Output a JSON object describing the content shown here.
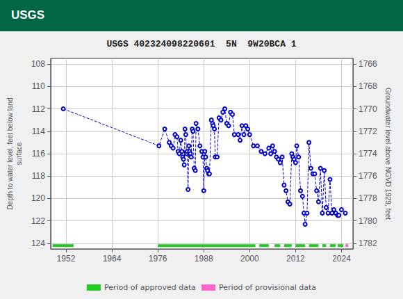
{
  "chart_data": {
    "type": "line",
    "title": "USGS 402324098220601  5N  9W20BCA 1",
    "ylabel": "Depth to water level, feet below land\nsurface",
    "y2label": "Groundwater level above NGVD 1929, feet",
    "annotations": [
      {
        "text": "USGS"
      }
    ],
    "xlim": [
      1948,
      2027
    ],
    "xticks": [
      1952,
      1964,
      1976,
      1988,
      2000,
      2012,
      2024
    ],
    "ylim": [
      124.5,
      107.5
    ],
    "yticks": [
      108,
      110,
      112,
      114,
      116,
      118,
      120,
      122,
      124
    ],
    "y2lim": [
      1782.5,
      1765.5
    ],
    "y2ticks": [
      1782,
      1780,
      1778,
      1776,
      1774,
      1772,
      1770,
      1768,
      1766
    ],
    "grid": true,
    "legend": "bottom",
    "series": [
      {
        "type": "line",
        "color": "#0000cc",
        "line_style": "dashed",
        "marker": "circle_open",
        "x": [
          1951.3,
          1976.3,
          1977.8,
          1979.0,
          1979.5,
          1980.0,
          1980.5,
          1981.0,
          1981.3,
          1981.6,
          1982.0,
          1982.3,
          1982.5,
          1982.7,
          1982.9,
          1983.1,
          1983.3,
          1983.5,
          1983.7,
          1983.9,
          1984.1,
          1984.3,
          1984.5,
          1984.7,
          1985.0,
          1985.2,
          1985.5,
          1985.8,
          1986.0,
          1986.5,
          1987.0,
          1987.5,
          1987.8,
          1988.0,
          1988.3,
          1988.5,
          1988.8,
          1989.0,
          1989.3,
          1989.5,
          1990.0,
          1990.3,
          1990.5,
          1990.8,
          1991.0,
          1991.5,
          1992.0,
          1992.5,
          1993.0,
          1993.5,
          1994.0,
          1994.5,
          1995.0,
          1995.5,
          1996.0,
          1997.0,
          1997.5,
          1998.0,
          1998.5,
          1999.0,
          1999.5,
          2000.0,
          2001.0,
          2002.0,
          2003.0,
          2004.0,
          2005.0,
          2005.5,
          2006.0,
          2006.5,
          2007.0,
          2007.5,
          2008.0,
          2008.5,
          2009.0,
          2009.5,
          2010.0,
          2010.5,
          2011.0,
          2011.3,
          2011.6,
          2012.0,
          2012.3,
          2012.8,
          2013.3,
          2013.8,
          2014.2,
          2014.5,
          2015.0,
          2015.5,
          2016.0,
          2016.5,
          2017.0,
          2017.5,
          2018.0,
          2018.5,
          2019.0,
          2019.5,
          2020.0,
          2020.5,
          2021.0,
          2021.5,
          2022.0,
          2022.5,
          2023.0,
          2023.3,
          2024.0,
          2025.0
        ],
        "values": [
          112.0,
          115.3,
          113.8,
          115.0,
          115.3,
          115.5,
          114.3,
          114.5,
          115.8,
          116.0,
          114.8,
          115.8,
          116.3,
          116.5,
          117.0,
          113.8,
          114.3,
          116.0,
          115.8,
          119.2,
          115.3,
          115.8,
          116.0,
          116.3,
          113.8,
          114.0,
          117.3,
          117.5,
          113.3,
          113.8,
          115.3,
          115.8,
          116.3,
          119.3,
          115.8,
          116.3,
          117.3,
          117.5,
          117.8,
          117.8,
          113.0,
          113.3,
          113.5,
          113.8,
          116.3,
          116.3,
          112.8,
          113.0,
          112.3,
          112.0,
          113.3,
          113.5,
          112.3,
          112.5,
          114.3,
          114.3,
          114.8,
          113.5,
          114.3,
          113.5,
          113.8,
          114.3,
          115.3,
          115.3,
          115.8,
          116.0,
          115.5,
          116.0,
          115.3,
          115.8,
          116.3,
          116.5,
          116.8,
          116.3,
          118.8,
          119.3,
          120.3,
          120.5,
          116.0,
          116.3,
          116.5,
          116.8,
          115.3,
          116.3,
          119.3,
          119.8,
          121.3,
          122.3,
          121.3,
          115.0,
          117.3,
          117.8,
          117.8,
          119.3,
          120.3,
          117.3,
          121.3,
          117.5,
          120.8,
          121.3,
          118.3,
          121.3,
          121.0,
          121.3,
          121.5,
          121.5,
          121.0,
          121.3
        ]
      },
      {
        "type": "segments",
        "name": "Period of approved data",
        "color": "#22cc22",
        "y": 124.2,
        "segments": [
          [
            1948.5,
            1954.0
          ],
          [
            1976.0,
            2001.5
          ],
          [
            2002.5,
            2005.0
          ],
          [
            2006.5,
            2008.0
          ],
          [
            2009.0,
            2011.0
          ],
          [
            2012.0,
            2014.5
          ],
          [
            2015.5,
            2018.0
          ],
          [
            2019.0,
            2020.0
          ],
          [
            2021.0,
            2022.5
          ],
          [
            2023.0,
            2024.5
          ]
        ]
      },
      {
        "type": "segments",
        "name": "Period of provisional data",
        "color": "#ff66cc",
        "y": 124.2,
        "segments": [
          [
            2025.0,
            2025.8
          ]
        ]
      }
    ]
  }
}
